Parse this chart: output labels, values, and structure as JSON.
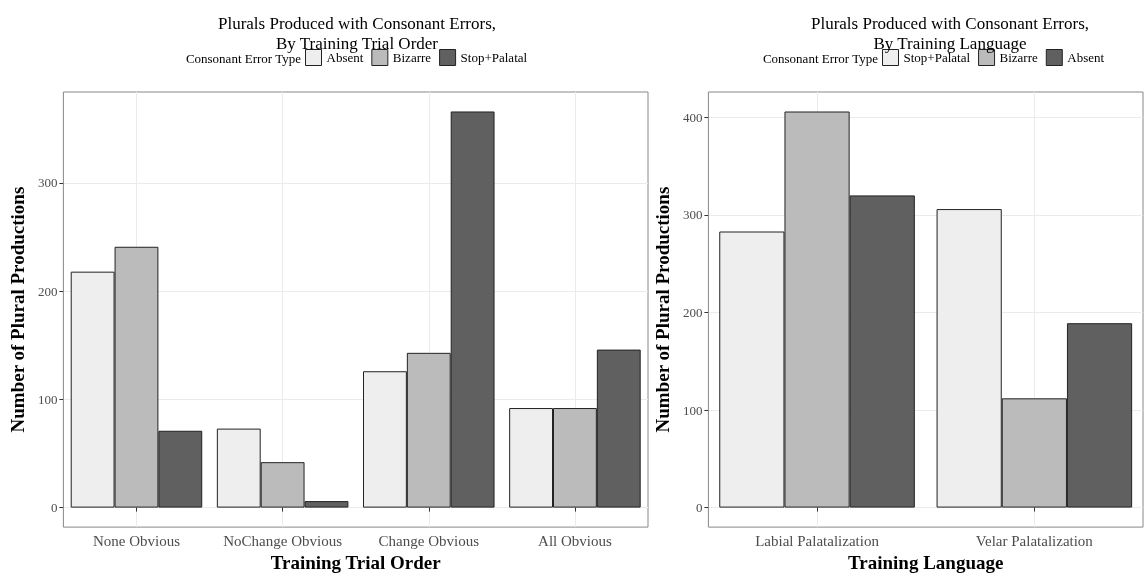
{
  "chart_data": [
    {
      "type": "bar",
      "title": "Plurals Produced with Consonant Errors,\nBy Training Trial Order",
      "xlabel": "Training Trial Order",
      "ylabel": "Number of Plural Productions",
      "legend_title": "Consonant Error Type",
      "categories": [
        "None Obvious",
        "NoChange Obvious",
        "Change Obvious",
        "All Obvious"
      ],
      "series": [
        {
          "name": "Absent",
          "color": "#eeeeee",
          "values": [
            218,
            73,
            126,
            92
          ]
        },
        {
          "name": "Bizarre",
          "color": "#bbbbbb",
          "values": [
            241,
            42,
            143,
            92
          ]
        },
        {
          "name": "Stop+Palatal",
          "color": "#606060",
          "values": [
            71,
            6,
            366,
            146
          ]
        }
      ],
      "ylim": [
        -18,
        384
      ],
      "yticks": [
        0,
        100,
        200,
        300
      ],
      "grid": true,
      "legend": "top"
    },
    {
      "type": "bar",
      "title": "Plurals Produced with Consonant Errors,\nBy Training Language",
      "xlabel": "Training Language",
      "ylabel": "Number of Plural Productions",
      "legend_title": "Consonant Error Type",
      "categories": [
        "Labial Palatalization",
        "Velar Palatalization"
      ],
      "series": [
        {
          "name": "Stop+Palatal",
          "color": "#eeeeee",
          "values": [
            283,
            306
          ]
        },
        {
          "name": "Bizarre",
          "color": "#bbbbbb",
          "values": [
            406,
            112
          ]
        },
        {
          "name": "Absent",
          "color": "#606060",
          "values": [
            320,
            189
          ]
        }
      ],
      "ylim": [
        -20,
        426
      ],
      "yticks": [
        0,
        100,
        200,
        300,
        400
      ],
      "grid": true,
      "legend": "top"
    }
  ]
}
